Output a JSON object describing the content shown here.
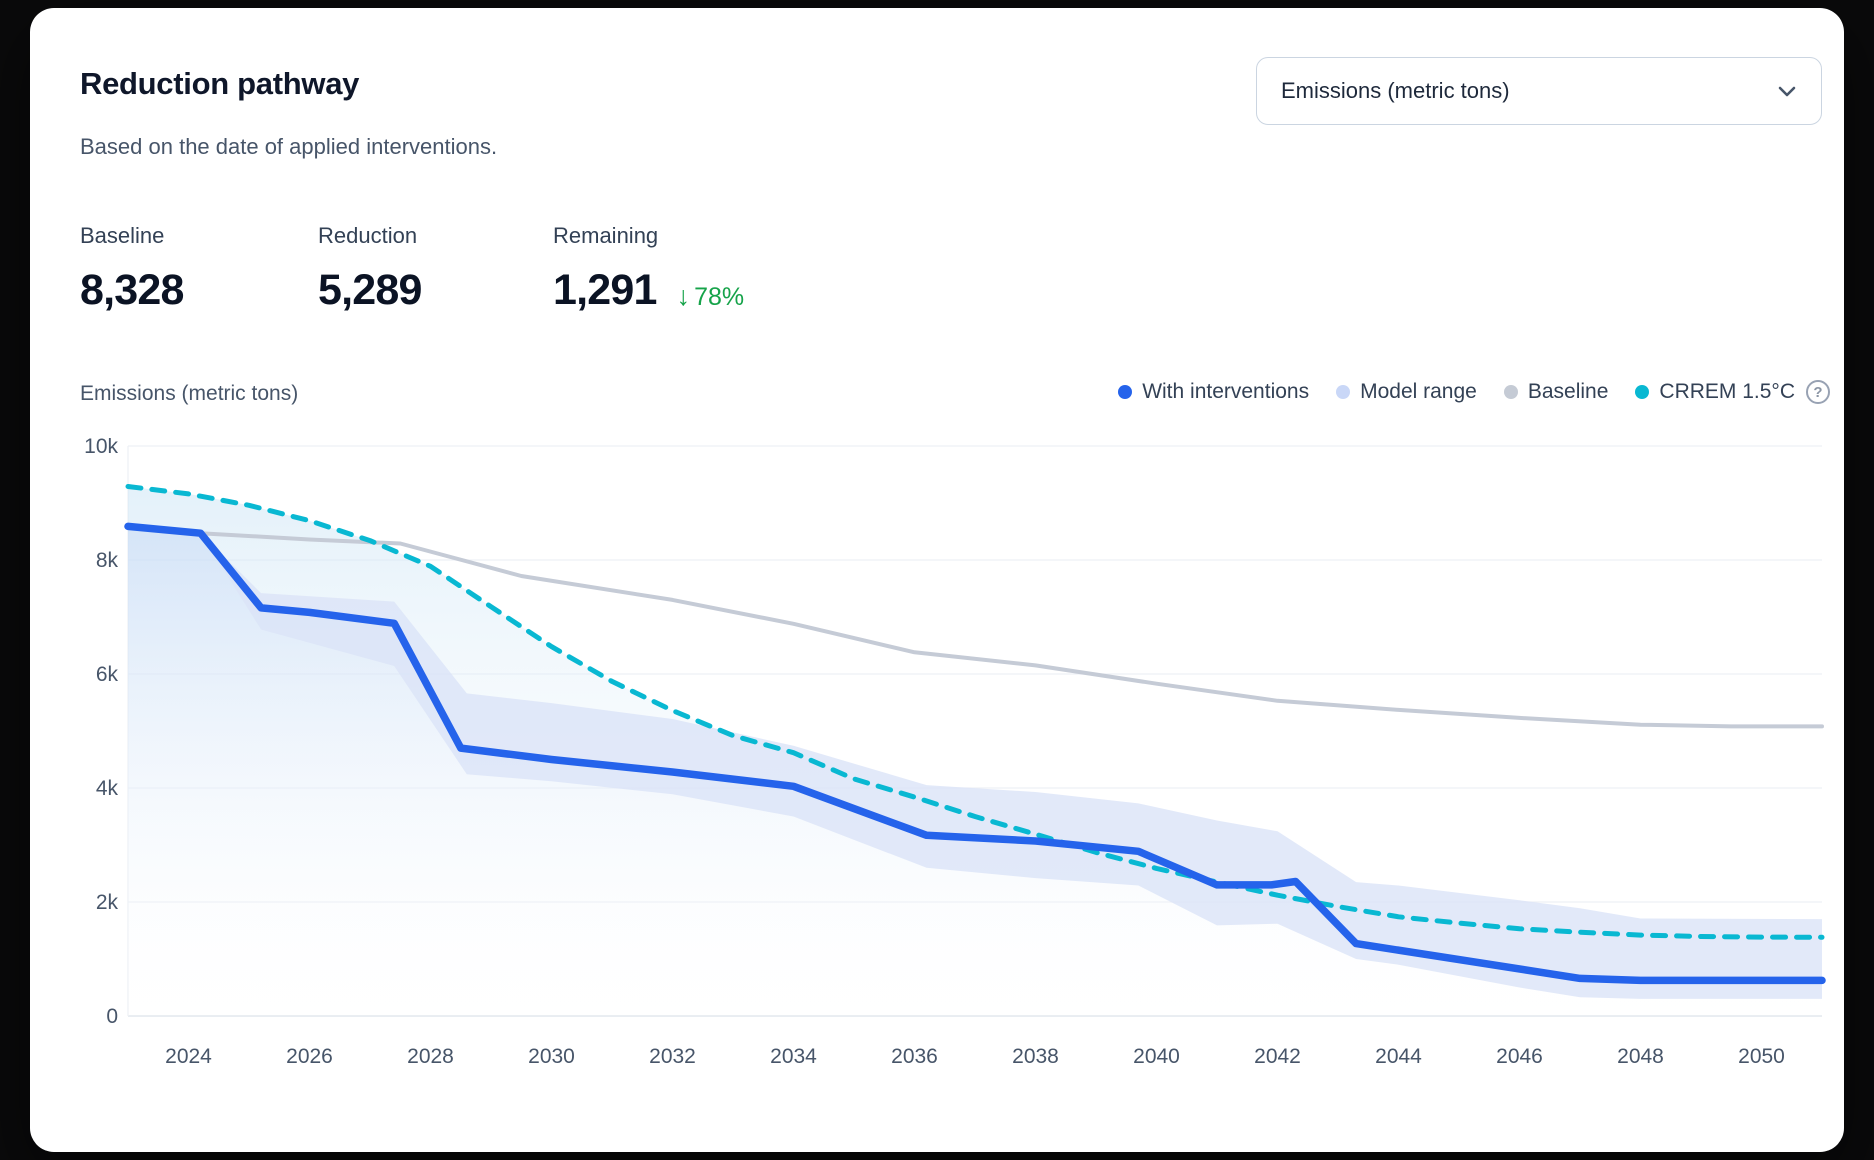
{
  "header": {
    "title": "Reduction pathway",
    "subtitle": "Based on the date of applied interventions."
  },
  "unit_select": {
    "value": "Emissions (metric tons)"
  },
  "stats": [
    {
      "label": "Baseline",
      "value": "8,328"
    },
    {
      "label": "Reduction",
      "value": "5,289"
    },
    {
      "label": "Remaining",
      "value": "1,291",
      "delta_arrow": "↓",
      "delta": "78%"
    }
  ],
  "axis_unit_label": "Emissions (metric tons)",
  "legend": {
    "items": [
      {
        "label": "With interventions",
        "color": "#2563eb"
      },
      {
        "label": "Model range",
        "color": "#c9d7f7"
      },
      {
        "label": "Baseline",
        "color": "#c5cbd5"
      },
      {
        "label": "CRREM 1.5°C",
        "color": "#09b8d2"
      }
    ],
    "help_icon": "question-circle"
  },
  "chart_data": {
    "type": "line",
    "title": "Reduction pathway",
    "ylabel": "Emissions (metric tons)",
    "ylim": [
      0,
      10000
    ],
    "x_range": [
      2023,
      2051
    ],
    "grid": true,
    "legend_position": "top-right",
    "yticks": [
      {
        "v": 0,
        "label": "0"
      },
      {
        "v": 2000,
        "label": "2k"
      },
      {
        "v": 4000,
        "label": "4k"
      },
      {
        "v": 6000,
        "label": "6k"
      },
      {
        "v": 8000,
        "label": "8k"
      },
      {
        "v": 10000,
        "label": "10k"
      }
    ],
    "xticks": [
      2024,
      2026,
      2028,
      2030,
      2032,
      2034,
      2036,
      2038,
      2040,
      2042,
      2044,
      2046,
      2048,
      2050
    ],
    "series": [
      {
        "name": "With interventions",
        "type": "line",
        "color": "#2563eb",
        "width": 7.5,
        "points": [
          [
            2023,
            8590
          ],
          [
            2024.2,
            8470
          ],
          [
            2025.2,
            7160
          ],
          [
            2026,
            7080
          ],
          [
            2027.4,
            6890
          ],
          [
            2028.5,
            4700
          ],
          [
            2030,
            4500
          ],
          [
            2032,
            4280
          ],
          [
            2034,
            4030
          ],
          [
            2036.2,
            3170
          ],
          [
            2038,
            3070
          ],
          [
            2039.7,
            2890
          ],
          [
            2041,
            2300
          ],
          [
            2041.9,
            2300
          ],
          [
            2042.3,
            2360
          ],
          [
            2043.3,
            1270
          ],
          [
            2047,
            660
          ],
          [
            2048,
            625
          ],
          [
            2051,
            625
          ]
        ]
      },
      {
        "name": "Model range",
        "type": "band",
        "color": "#dbe3f8",
        "points_format": [
          "year",
          "low",
          "high"
        ],
        "points": [
          [
            2024.2,
            8470,
            8470
          ],
          [
            2025.2,
            6780,
            7420
          ],
          [
            2027.4,
            6140,
            7270
          ],
          [
            2028.6,
            4240,
            5660
          ],
          [
            2030,
            4120,
            5490
          ],
          [
            2032,
            3890,
            5210
          ],
          [
            2034,
            3500,
            4740
          ],
          [
            2036.2,
            2600,
            4050
          ],
          [
            2038,
            2420,
            3930
          ],
          [
            2039.7,
            2290,
            3730
          ],
          [
            2041,
            1590,
            3430
          ],
          [
            2042,
            1620,
            3240
          ],
          [
            2043.3,
            1000,
            2350
          ],
          [
            2044,
            900,
            2290
          ],
          [
            2046,
            500,
            2030
          ],
          [
            2047,
            330,
            1890
          ],
          [
            2048,
            300,
            1710
          ],
          [
            2051,
            300,
            1700
          ]
        ]
      },
      {
        "name": "Baseline",
        "type": "line",
        "color": "#c5cbd6",
        "width": 4,
        "points": [
          [
            2024.2,
            8470
          ],
          [
            2026,
            8360
          ],
          [
            2027.5,
            8290
          ],
          [
            2029.5,
            7720
          ],
          [
            2032,
            7300
          ],
          [
            2034,
            6880
          ],
          [
            2036,
            6380
          ],
          [
            2038,
            6150
          ],
          [
            2040,
            5830
          ],
          [
            2042,
            5530
          ],
          [
            2044,
            5370
          ],
          [
            2046,
            5230
          ],
          [
            2048,
            5110
          ],
          [
            2049.5,
            5080
          ],
          [
            2051,
            5080
          ]
        ]
      },
      {
        "name": "CRREM 1.5°C",
        "type": "dashed-line",
        "color": "#09b8d2",
        "width": 5,
        "points": [
          [
            2023,
            9290
          ],
          [
            2024,
            9160
          ],
          [
            2025,
            8960
          ],
          [
            2026,
            8690
          ],
          [
            2027,
            8340
          ],
          [
            2028,
            7890
          ],
          [
            2029,
            7180
          ],
          [
            2030,
            6480
          ],
          [
            2031,
            5870
          ],
          [
            2032,
            5360
          ],
          [
            2033,
            4920
          ],
          [
            2034,
            4620
          ],
          [
            2035,
            4160
          ],
          [
            2036,
            3840
          ],
          [
            2037,
            3500
          ],
          [
            2038,
            3190
          ],
          [
            2039,
            2870
          ],
          [
            2040,
            2590
          ],
          [
            2041,
            2350
          ],
          [
            2042,
            2120
          ],
          [
            2043,
            1920
          ],
          [
            2044,
            1740
          ],
          [
            2045,
            1630
          ],
          [
            2046,
            1530
          ],
          [
            2047,
            1470
          ],
          [
            2048,
            1420
          ],
          [
            2049,
            1395
          ],
          [
            2050,
            1385
          ],
          [
            2051,
            1380
          ]
        ]
      }
    ]
  }
}
